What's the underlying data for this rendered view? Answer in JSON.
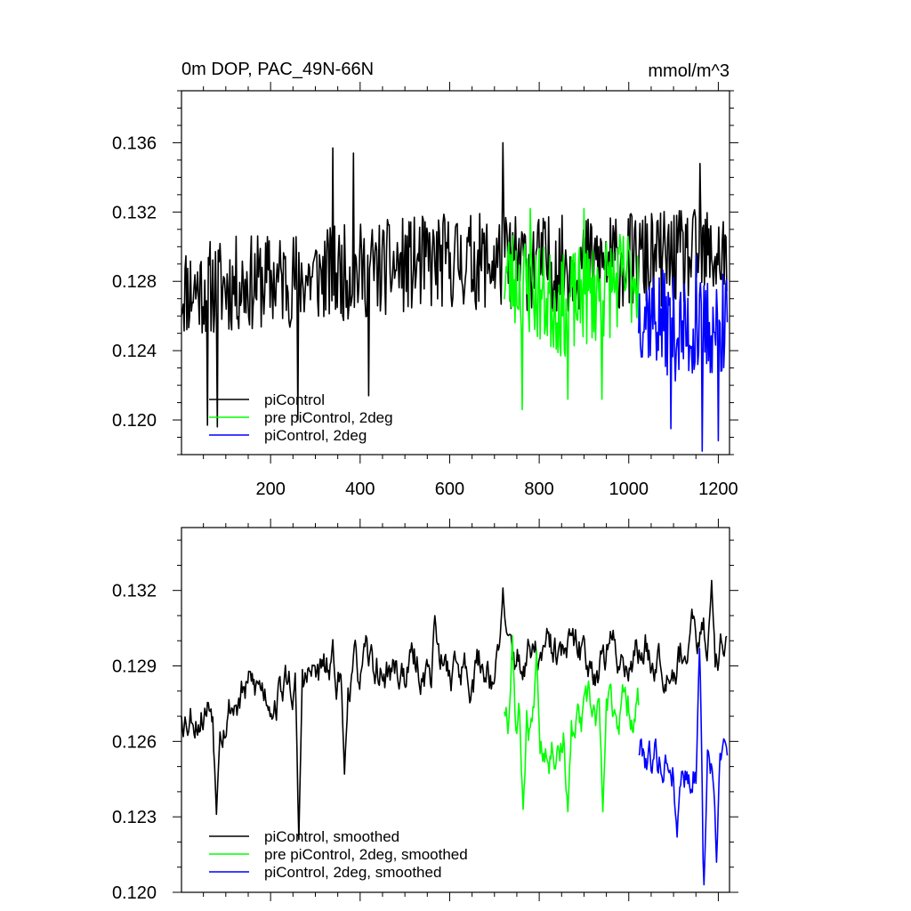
{
  "chart_data": [
    {
      "type": "line",
      "title_left": "0m DOP, PAC_49N-66N",
      "title_right": "mmol/m^3",
      "xlim": [
        1,
        1225
      ],
      "ylim": [
        0.118,
        0.139
      ],
      "xticks": [
        200,
        400,
        600,
        800,
        1000,
        1200
      ],
      "xtick_labels": [
        "200",
        "400",
        "600",
        "800",
        "1000",
        "1200"
      ],
      "xminor_step": 50,
      "yticks": [
        0.12,
        0.124,
        0.128,
        0.132,
        0.136
      ],
      "ytick_labels": [
        "0.120",
        "0.124",
        "0.128",
        "0.132",
        "0.136"
      ],
      "yminor_step": 0.001,
      "legend": [
        "piControl",
        "pre piControl, 2deg",
        "piControl, 2deg"
      ],
      "legend_position": "bottom-left",
      "series": [
        {
          "name": "piControl",
          "color": "#000000",
          "x_start": 1,
          "x_end": 1220,
          "step": 2,
          "base": 0.1285,
          "amp": 0.0028,
          "seed": 11,
          "low_spikes": [
            [
              60,
              0.1197
            ],
            [
              82,
              0.1196
            ],
            [
              262,
              0.12
            ],
            [
              420,
              0.1214
            ]
          ],
          "high_spikes": [
            [
              340,
              0.1357
            ],
            [
              385,
              0.1354
            ],
            [
              720,
              0.136
            ],
            [
              1160,
              0.1348
            ]
          ],
          "seg_trend": [
            [
              0,
              0.1275
            ],
            [
              300,
              0.1283
            ],
            [
              600,
              0.1292
            ],
            [
              900,
              0.129
            ],
            [
              1220,
              0.1295
            ]
          ]
        },
        {
          "name": "pre piControl, 2deg",
          "color": "#00ff00",
          "x_start": 722,
          "x_end": 1022,
          "step": 2,
          "base": 0.127,
          "amp": 0.003,
          "seed": 23,
          "low_spikes": [
            [
              763,
              0.1206
            ],
            [
              865,
              0.1212
            ],
            [
              940,
              0.1212
            ]
          ],
          "high_spikes": [
            [
              780,
              0.1322
            ],
            [
              900,
              0.1322
            ]
          ],
          "seg_trend": [
            [
              722,
              0.1285
            ],
            [
              850,
              0.1265
            ],
            [
              1022,
              0.1285
            ]
          ]
        },
        {
          "name": "piControl, 2deg",
          "color": "#0000ff",
          "x_start": 1022,
          "x_end": 1220,
          "step": 2,
          "base": 0.1255,
          "amp": 0.003,
          "seed": 37,
          "low_spikes": [
            [
              1095,
              0.1195
            ],
            [
              1165,
              0.1182
            ],
            [
              1200,
              0.1188
            ]
          ],
          "high_spikes": [
            [
              1150,
              0.1295
            ],
            [
              1210,
              0.1284
            ]
          ],
          "seg_trend": [
            [
              1022,
              0.1265
            ],
            [
              1120,
              0.125
            ],
            [
              1220,
              0.1255
            ]
          ]
        }
      ]
    },
    {
      "type": "line",
      "xlim": [
        1,
        1225
      ],
      "ylim": [
        0.12,
        0.1345
      ],
      "xticks": [
        200,
        400,
        600,
        800,
        1000,
        1200
      ],
      "xminor_step": 50,
      "yticks": [
        0.12,
        0.123,
        0.126,
        0.129,
        0.132
      ],
      "ytick_labels": [
        "0.120",
        "0.123",
        "0.126",
        "0.129",
        "0.132"
      ],
      "yminor_step": 0.001,
      "legend": [
        "piControl, smoothed",
        "pre piControl, 2deg, smoothed",
        "piControl, 2deg, smoothed"
      ],
      "legend_position": "bottom-left",
      "series": [
        {
          "name": "piControl, smoothed",
          "color": "#000000",
          "x_start": 1,
          "x_end": 1220,
          "step": 2,
          "base": 0.1285,
          "amp": 0.0011,
          "seed": 53,
          "low_spikes": [
            [
              80,
              0.1231
            ],
            [
              263,
              0.1221
            ],
            [
              365,
              0.1247
            ]
          ],
          "high_spikes": [
            [
              568,
              0.131
            ],
            [
              720,
              0.1321
            ],
            [
              1185,
              0.1324
            ]
          ],
          "seg_trend": [
            [
              0,
              0.1273
            ],
            [
              300,
              0.1285
            ],
            [
              600,
              0.129
            ],
            [
              900,
              0.1293
            ],
            [
              1220,
              0.13
            ]
          ]
        },
        {
          "name": "pre piControl, 2deg, smoothed",
          "color": "#00ff00",
          "x_start": 722,
          "x_end": 1022,
          "step": 2,
          "base": 0.1266,
          "amp": 0.0012,
          "seed": 67,
          "low_spikes": [
            [
              764,
              0.1233
            ],
            [
              865,
              0.1232
            ],
            [
              943,
              0.1232
            ]
          ],
          "high_spikes": [
            [
              740,
              0.1302
            ],
            [
              795,
              0.1296
            ]
          ],
          "seg_trend": [
            [
              722,
              0.1275
            ],
            [
              870,
              0.1262
            ],
            [
              1022,
              0.1278
            ]
          ]
        },
        {
          "name": "piControl, 2deg, smoothed",
          "color": "#0000ff",
          "x_start": 1022,
          "x_end": 1220,
          "step": 2,
          "base": 0.1254,
          "amp": 0.0011,
          "seed": 79,
          "low_spikes": [
            [
              1108,
              0.1222
            ],
            [
              1168,
              0.1203
            ],
            [
              1197,
              0.1212
            ]
          ],
          "high_spikes": [
            [
              1158,
              0.1297
            ],
            [
              1213,
              0.1261
            ]
          ],
          "seg_trend": [
            [
              1022,
              0.1258
            ],
            [
              1120,
              0.125
            ],
            [
              1220,
              0.1252
            ]
          ]
        }
      ]
    }
  ]
}
